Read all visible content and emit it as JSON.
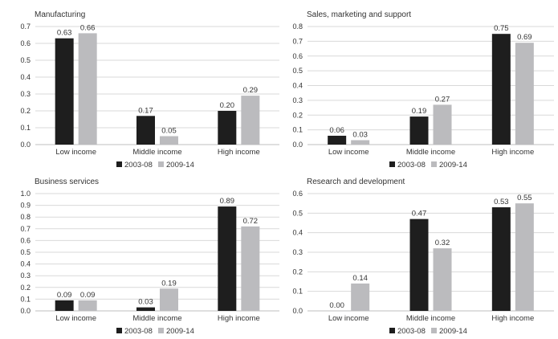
{
  "colors": {
    "series_2003_08": "#1e1e1e",
    "series_2009_14": "#bbbbbe",
    "gridline": "#d9d9d9",
    "axis": "#bfbfbf"
  },
  "chart_data": [
    {
      "type": "bar",
      "title": "Manufacturing",
      "categories": [
        "Low income",
        "Middle income",
        "High income"
      ],
      "series": [
        {
          "name": "2003-08",
          "values": [
            0.63,
            0.17,
            0.2
          ],
          "labels": [
            "0.63",
            "0.17",
            "0.20"
          ]
        },
        {
          "name": "2009-14",
          "values": [
            0.66,
            0.05,
            0.29
          ],
          "labels": [
            "0.66",
            "0.05",
            "0.29"
          ]
        }
      ],
      "ylim": [
        0,
        0.7
      ],
      "yticks": [
        "0.0",
        "0.1",
        "0.2",
        "0.3",
        "0.4",
        "0.5",
        "0.6",
        "0.7"
      ],
      "grid": true,
      "legend": "bottom"
    },
    {
      "type": "bar",
      "title": "Sales, marketing and support",
      "categories": [
        "Low income",
        "Middle income",
        "High income"
      ],
      "series": [
        {
          "name": "2003-08",
          "values": [
            0.06,
            0.19,
            0.75
          ],
          "labels": [
            "0.06",
            "0.19",
            "0.75"
          ]
        },
        {
          "name": "2009-14",
          "values": [
            0.03,
            0.27,
            0.69
          ],
          "labels": [
            "0.03",
            "0.27",
            "0.69"
          ]
        }
      ],
      "ylim": [
        0,
        0.8
      ],
      "yticks": [
        "0.0",
        "0.1",
        "0.2",
        "0.3",
        "0.4",
        "0.5",
        "0.6",
        "0.7",
        "0.8"
      ],
      "grid": true,
      "legend": "bottom"
    },
    {
      "type": "bar",
      "title": "Business services",
      "categories": [
        "Low income",
        "Middle income",
        "High income"
      ],
      "series": [
        {
          "name": "2003-08",
          "values": [
            0.09,
            0.03,
            0.89
          ],
          "labels": [
            "0.09",
            "0.03",
            "0.89"
          ]
        },
        {
          "name": "2009-14",
          "values": [
            0.09,
            0.19,
            0.72
          ],
          "labels": [
            "0.09",
            "0.19",
            "0.72"
          ]
        }
      ],
      "ylim": [
        0,
        1.0
      ],
      "yticks": [
        "0.0",
        "0.1",
        "0.2",
        "0.3",
        "0.4",
        "0.5",
        "0.6",
        "0.7",
        "0.8",
        "0.9",
        "1.0"
      ],
      "grid": true,
      "legend": "bottom"
    },
    {
      "type": "bar",
      "title": "Research and development",
      "categories": [
        "Low income",
        "Middle income",
        "High income"
      ],
      "series": [
        {
          "name": "2003-08",
          "values": [
            0.0,
            0.47,
            0.53
          ],
          "labels": [
            "0.00",
            "0.47",
            "0.53"
          ]
        },
        {
          "name": "2009-14",
          "values": [
            0.14,
            0.32,
            0.55
          ],
          "labels": [
            "0.14",
            "0.32",
            "0.55"
          ]
        }
      ],
      "ylim": [
        0,
        0.6
      ],
      "yticks": [
        "0.0",
        "0.1",
        "0.2",
        "0.3",
        "0.4",
        "0.5",
        "0.6"
      ],
      "grid": true,
      "legend": "bottom"
    }
  ]
}
